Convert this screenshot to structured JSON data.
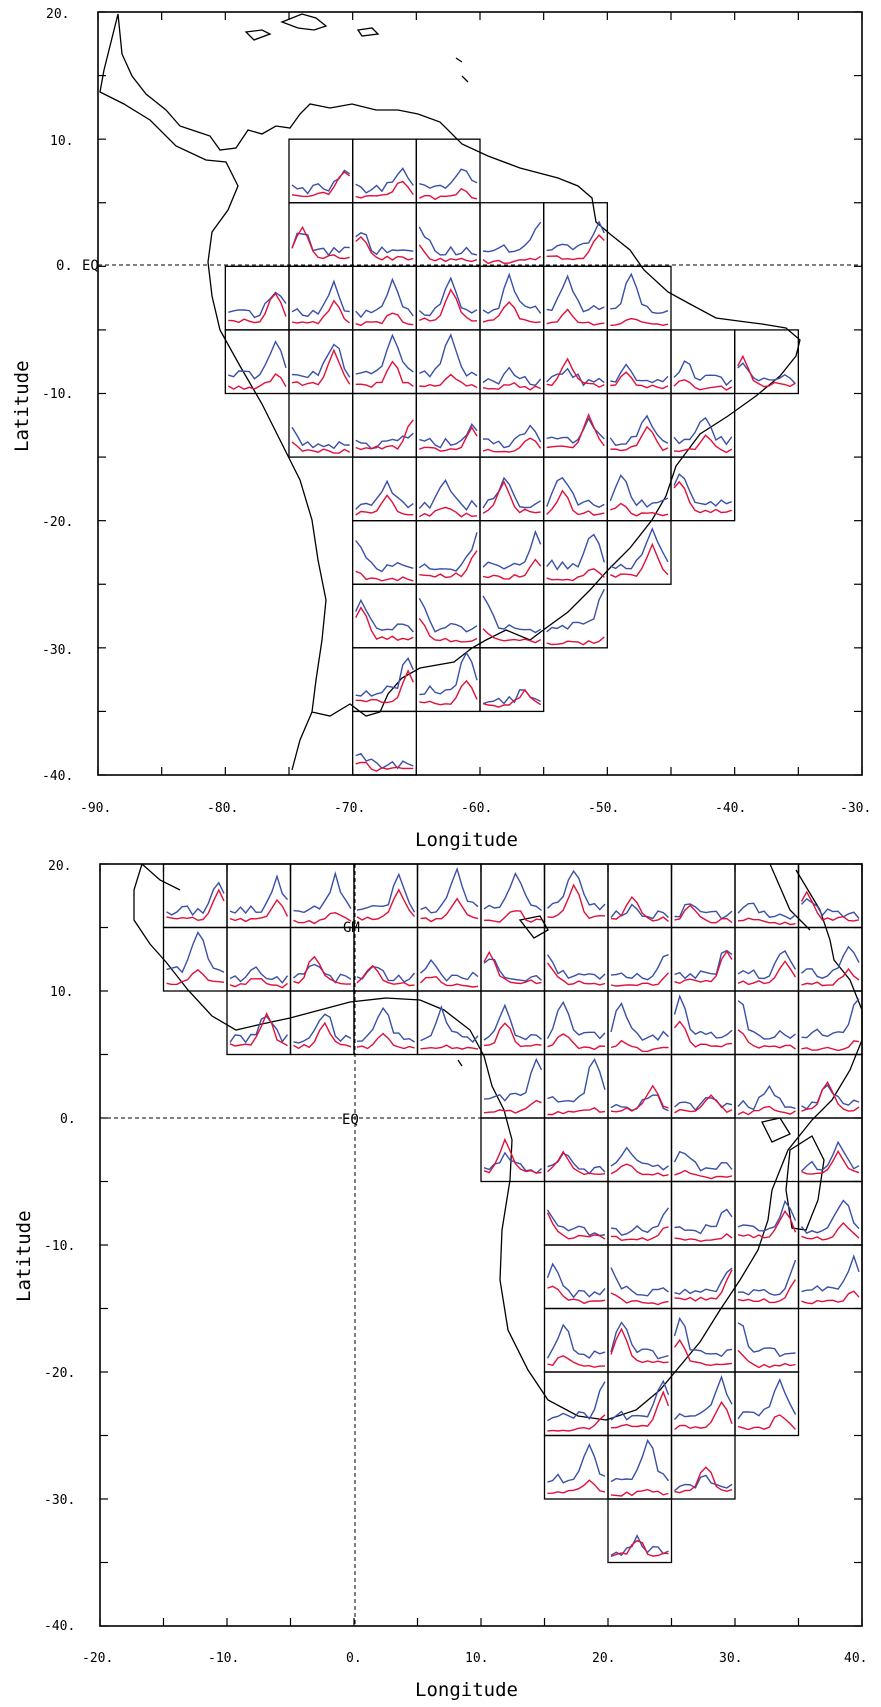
{
  "maps": [
    {
      "id": "south-america",
      "x_ticks": [
        "-90.",
        "-80.",
        "-70.",
        "-60.",
        "-50.",
        "-40.",
        "-30."
      ],
      "y_ticks": [
        "20.",
        "10.",
        "0.",
        "-10.",
        "-20.",
        "-30.",
        "-40."
      ],
      "x_label": "Longitude",
      "y_label": "Latitude",
      "equator_label": "EQ",
      "lon_range": [
        -90,
        -30
      ],
      "lat_range": [
        -40,
        20
      ],
      "boxes": [
        [
          -75,
          5
        ],
        [
          -70,
          5
        ],
        [
          -65,
          5
        ],
        [
          -75,
          0
        ],
        [
          -70,
          0
        ],
        [
          -65,
          0
        ],
        [
          -60,
          0
        ],
        [
          -55,
          0
        ],
        [
          -80,
          -5
        ],
        [
          -75,
          -5
        ],
        [
          -70,
          -5
        ],
        [
          -65,
          -5
        ],
        [
          -60,
          -5
        ],
        [
          -55,
          -5
        ],
        [
          -50,
          -5
        ],
        [
          -80,
          -10
        ],
        [
          -75,
          -10
        ],
        [
          -70,
          -10
        ],
        [
          -65,
          -10
        ],
        [
          -60,
          -10
        ],
        [
          -55,
          -10
        ],
        [
          -50,
          -10
        ],
        [
          -45,
          -10
        ],
        [
          -40,
          -10
        ],
        [
          -75,
          -15
        ],
        [
          -70,
          -15
        ],
        [
          -65,
          -15
        ],
        [
          -60,
          -15
        ],
        [
          -55,
          -15
        ],
        [
          -50,
          -15
        ],
        [
          -45,
          -15
        ],
        [
          -70,
          -20
        ],
        [
          -65,
          -20
        ],
        [
          -60,
          -20
        ],
        [
          -55,
          -20
        ],
        [
          -50,
          -20
        ],
        [
          -45,
          -20
        ],
        [
          -70,
          -25
        ],
        [
          -65,
          -25
        ],
        [
          -60,
          -25
        ],
        [
          -55,
          -25
        ],
        [
          -50,
          -25
        ],
        [
          -70,
          -30
        ],
        [
          -65,
          -30
        ],
        [
          -60,
          -30
        ],
        [
          -55,
          -30
        ],
        [
          -70,
          -35
        ],
        [
          -65,
          -35
        ],
        [
          -60,
          -35
        ],
        [
          -70,
          -40
        ]
      ]
    },
    {
      "id": "africa",
      "x_ticks": [
        "-20.",
        "-10.",
        "0.",
        "10.",
        "20.",
        "30.",
        "40."
      ],
      "y_ticks": [
        "20.",
        "10.",
        "0.",
        "-10.",
        "-20.",
        "-30.",
        "-40."
      ],
      "x_label": "Longitude",
      "y_label": "Latitude",
      "equator_label": "EQ",
      "meridian_label": "GM",
      "lon_range": [
        -20,
        40
      ],
      "lat_range": [
        -40,
        20
      ],
      "boxes": [
        [
          -15,
          15
        ],
        [
          -10,
          15
        ],
        [
          -5,
          15
        ],
        [
          0,
          15
        ],
        [
          5,
          15
        ],
        [
          10,
          15
        ],
        [
          15,
          15
        ],
        [
          20,
          15
        ],
        [
          25,
          15
        ],
        [
          30,
          15
        ],
        [
          35,
          15
        ],
        [
          -15,
          10
        ],
        [
          -10,
          10
        ],
        [
          -5,
          10
        ],
        [
          0,
          10
        ],
        [
          5,
          10
        ],
        [
          10,
          10
        ],
        [
          15,
          10
        ],
        [
          20,
          10
        ],
        [
          25,
          10
        ],
        [
          30,
          10
        ],
        [
          35,
          10
        ],
        [
          -10,
          5
        ],
        [
          -5,
          5
        ],
        [
          0,
          5
        ],
        [
          5,
          5
        ],
        [
          10,
          5
        ],
        [
          15,
          5
        ],
        [
          20,
          5
        ],
        [
          25,
          5
        ],
        [
          30,
          5
        ],
        [
          35,
          5
        ],
        [
          10,
          0
        ],
        [
          15,
          0
        ],
        [
          20,
          0
        ],
        [
          25,
          0
        ],
        [
          30,
          0
        ],
        [
          35,
          0
        ],
        [
          10,
          -5
        ],
        [
          15,
          -5
        ],
        [
          20,
          -5
        ],
        [
          25,
          -5
        ],
        [
          35,
          -5
        ],
        [
          15,
          -10
        ],
        [
          20,
          -10
        ],
        [
          25,
          -10
        ],
        [
          30,
          -10
        ],
        [
          35,
          -10
        ],
        [
          15,
          -15
        ],
        [
          20,
          -15
        ],
        [
          25,
          -15
        ],
        [
          30,
          -15
        ],
        [
          35,
          -15
        ],
        [
          15,
          -20
        ],
        [
          20,
          -20
        ],
        [
          25,
          -20
        ],
        [
          30,
          -20
        ],
        [
          15,
          -25
        ],
        [
          20,
          -25
        ],
        [
          25,
          -25
        ],
        [
          30,
          -25
        ],
        [
          15,
          -30
        ],
        [
          20,
          -30
        ],
        [
          25,
          -30
        ],
        [
          20,
          -35
        ]
      ]
    }
  ],
  "series_colors": {
    "blue": "#3a4fa8",
    "red": "#e0103a"
  }
}
